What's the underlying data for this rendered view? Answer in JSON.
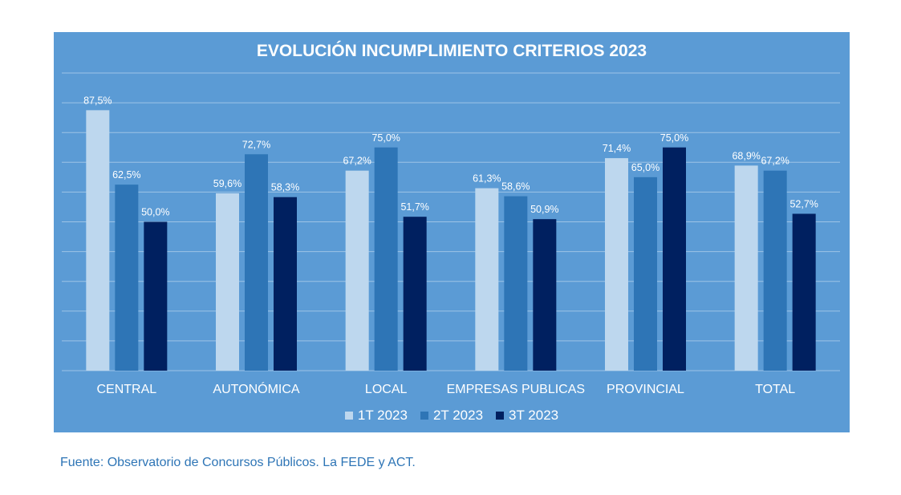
{
  "chart_data": {
    "type": "bar",
    "title": "EVOLUCIÓN INCUMPLIMIENTO CRITERIOS 2023",
    "categories": [
      "CENTRAL",
      "AUTONÓMICA",
      "LOCAL",
      "EMPRESAS PUBLICAS",
      "PROVINCIAL",
      "TOTAL"
    ],
    "series": [
      {
        "name": "1T 2023",
        "values": [
          87.5,
          59.6,
          67.2,
          61.3,
          71.4,
          68.9
        ],
        "labels": [
          "87,5%",
          "59,6%",
          "67,2%",
          "61,3%",
          "71,4%",
          "68,9%"
        ],
        "color": "#bdd7ee"
      },
      {
        "name": "2T 2023",
        "values": [
          62.5,
          72.7,
          75.0,
          58.6,
          65.0,
          67.2
        ],
        "labels": [
          "62,5%",
          "72,7%",
          "75,0%",
          "58,6%",
          "65,0%",
          "67,2%"
        ],
        "color": "#2e75b6"
      },
      {
        "name": "3T 2023",
        "values": [
          50.0,
          58.3,
          51.7,
          50.9,
          75.0,
          52.7
        ],
        "labels": [
          "50,0%",
          "58,3%",
          "51,7%",
          "50,9%",
          "75,0%",
          "52,7%"
        ],
        "color": "#002060"
      }
    ],
    "ylim": [
      0,
      100
    ],
    "grid": true,
    "legend_position": "bottom",
    "background": "#5b9bd5",
    "text_color": "#ffffff",
    "gridline_color": "#9dc3e6"
  },
  "source_note": "Fuente: Observatorio de Concursos Públicos. La FEDE y ACT."
}
